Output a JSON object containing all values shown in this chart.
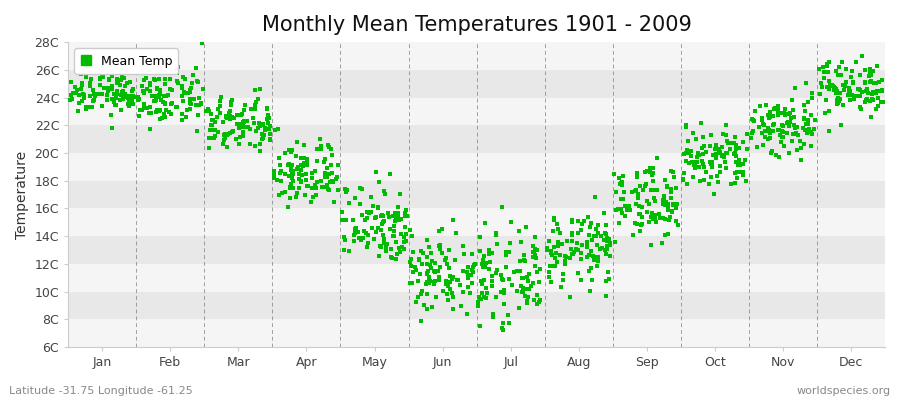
{
  "title": "Monthly Mean Temperatures 1901 - 2009",
  "ylabel": "Temperature",
  "xlabel_bottom_left": "Latitude -31.75 Longitude -61.25",
  "xlabel_bottom_right": "worldspecies.org",
  "legend_label": "Mean Temp",
  "marker_color": "#00bb00",
  "marker_size": 3,
  "ylim": [
    6,
    28
  ],
  "ytick_values": [
    6,
    8,
    10,
    12,
    14,
    16,
    18,
    20,
    22,
    24,
    26,
    28
  ],
  "ytick_labels": [
    "6C",
    "8C",
    "10C",
    "12C",
    "14C",
    "16C",
    "18C",
    "20C",
    "22C",
    "24C",
    "26C",
    "28C"
  ],
  "months": [
    "Jan",
    "Feb",
    "Mar",
    "Apr",
    "May",
    "Jun",
    "Jul",
    "Aug",
    "Sep",
    "Oct",
    "Nov",
    "Dec"
  ],
  "n_years": 109,
  "monthly_means": [
    24.5,
    24.0,
    22.0,
    18.5,
    15.0,
    11.5,
    11.0,
    13.0,
    16.5,
    19.5,
    22.0,
    24.8
  ],
  "monthly_stds": [
    0.9,
    1.0,
    1.0,
    1.2,
    1.5,
    1.5,
    1.5,
    1.3,
    1.3,
    1.2,
    1.2,
    1.0
  ],
  "bg_color": "#ffffff",
  "band_colors": [
    "#f5f5f5",
    "#e8e8e8"
  ],
  "grid_color": "#666666",
  "title_fontsize": 15,
  "axis_fontsize": 10,
  "tick_fontsize": 9,
  "legend_fontsize": 9
}
